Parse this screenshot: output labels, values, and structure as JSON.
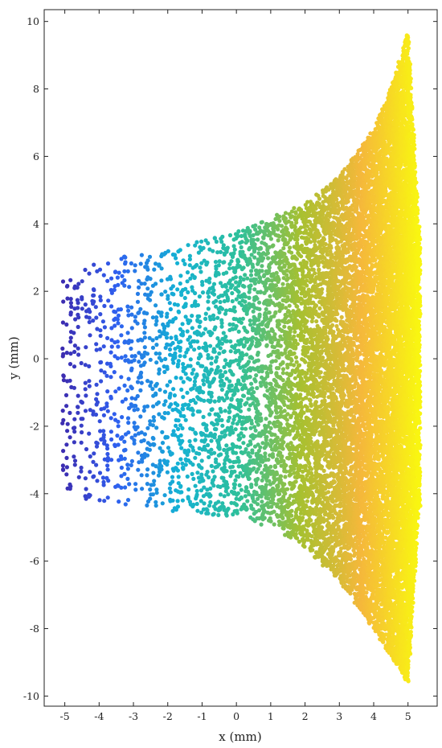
{
  "chart_data": {
    "type": "scatter",
    "title": "",
    "xlabel": "x (mm)",
    "ylabel": "y (mm)",
    "xlim": [
      -5.6,
      5.85
    ],
    "ylim": [
      -10.3,
      10.35
    ],
    "xticks": [
      -5,
      -4,
      -3,
      -2,
      -1,
      0,
      1,
      2,
      3,
      4,
      5
    ],
    "yticks": [
      -10,
      -8,
      -6,
      -4,
      -2,
      0,
      2,
      4,
      6,
      8,
      10
    ],
    "grid": false,
    "legend": "none",
    "colormap": [
      "#3e26a8",
      "#2f60f0",
      "#14b1d4",
      "#2ec09a",
      "#a7c030",
      "#f5b83b",
      "#f9fb0e"
    ],
    "envelope": {
      "x": [
        -5.0,
        -4.0,
        -3.0,
        -2.0,
        -1.0,
        0.0,
        1.0,
        2.0,
        3.0,
        4.0,
        4.5,
        5.0,
        5.3
      ],
      "y_upper": [
        2.3,
        2.9,
        3.1,
        3.2,
        3.5,
        3.8,
        4.2,
        4.6,
        5.4,
        6.8,
        8.0,
        9.7,
        4.0
      ],
      "y_lower": [
        -4.1,
        -4.2,
        -4.4,
        -4.5,
        -4.6,
        -4.7,
        -5.0,
        -5.6,
        -6.6,
        -8.0,
        -8.8,
        -9.6,
        -4.5
      ]
    },
    "columns_x_start": -5.05,
    "columns_x_end": 5.35,
    "point_count_estimate": 4000
  }
}
